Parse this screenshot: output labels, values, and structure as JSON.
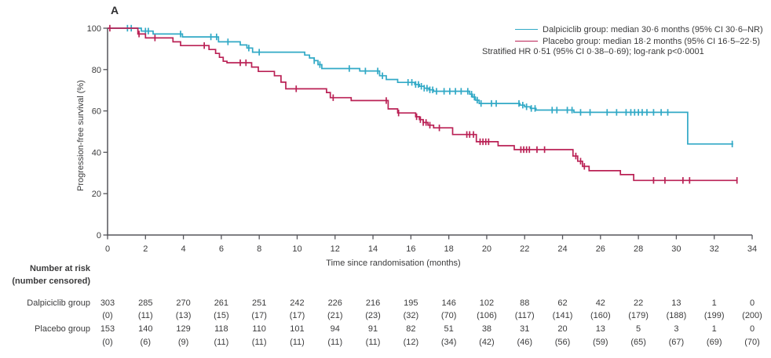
{
  "panel_label": "A",
  "colors": {
    "dalpiciclib": "#31a9c6",
    "placebo": "#ba2155",
    "axis": "#55555a",
    "text": "#3b3b3c"
  },
  "legend": {
    "entries": [
      {
        "label": "Dalpiciclib group: median 30·6 months (95% CI 30·6–NR)",
        "color": "#31a9c6"
      },
      {
        "label": "Placebo group: median 18·2 months (95% CI 16·5–22·5)",
        "color": "#ba2155"
      }
    ],
    "note": "Stratified HR 0·51 (95% CI 0·38–0·69); log-rank p<0·0001"
  },
  "chart_data": {
    "type": "line",
    "subtype": "kaplan-meier-step",
    "xlabel": "Time since randomisation (months)",
    "ylabel": "Progression-free survival (%)",
    "xlim": [
      0,
      34
    ],
    "ylim": [
      0,
      100
    ],
    "x_ticks": [
      0,
      2,
      4,
      6,
      8,
      10,
      12,
      14,
      16,
      18,
      20,
      22,
      24,
      26,
      28,
      30,
      32,
      34
    ],
    "y_ticks": [
      0,
      20,
      40,
      60,
      80,
      100
    ],
    "grid": false,
    "legend_position": "top-right",
    "series": [
      {
        "name": "Dalpiciclib group",
        "color": "#31a9c6",
        "median_months": "30·6",
        "ci": "30·6–NR",
        "steps": [
          [
            0,
            100
          ],
          [
            1.78,
            98.6
          ],
          [
            2.4,
            97.2
          ],
          [
            3.95,
            95.8
          ],
          [
            5.85,
            93.4
          ],
          [
            7.0,
            91.9
          ],
          [
            7.35,
            90.4
          ],
          [
            7.65,
            88.4
          ],
          [
            10.4,
            87.0
          ],
          [
            10.65,
            85.6
          ],
          [
            10.9,
            84.3
          ],
          [
            11.1,
            82.4
          ],
          [
            11.3,
            80.5
          ],
          [
            13.3,
            79.3
          ],
          [
            14.35,
            77.0
          ],
          [
            14.7,
            75.2
          ],
          [
            15.3,
            73.8
          ],
          [
            16.2,
            72.8
          ],
          [
            16.45,
            71.9
          ],
          [
            16.7,
            71.0
          ],
          [
            16.95,
            70.2
          ],
          [
            17.2,
            69.5
          ],
          [
            19.1,
            68.1
          ],
          [
            19.25,
            66.7
          ],
          [
            19.4,
            65.2
          ],
          [
            19.6,
            63.6
          ],
          [
            21.75,
            62.8
          ],
          [
            22.0,
            62.0
          ],
          [
            22.3,
            61.2
          ],
          [
            22.6,
            60.4
          ],
          [
            24.6,
            59.3
          ],
          [
            30.6,
            44.0
          ]
        ],
        "end_time": 33.0,
        "censor_times": [
          1.05,
          1.25,
          2.0,
          2.15,
          3.85,
          5.45,
          5.75,
          6.35,
          7.45,
          8.0,
          10.9,
          11.2,
          12.75,
          13.6,
          14.25,
          14.5,
          15.85,
          16.05,
          16.25,
          16.4,
          16.55,
          16.7,
          16.85,
          17.0,
          17.15,
          17.35,
          17.75,
          18.05,
          18.35,
          18.65,
          19.0,
          19.2,
          19.35,
          19.5,
          19.7,
          20.25,
          20.5,
          21.7,
          21.9,
          22.1,
          22.35,
          22.55,
          23.45,
          23.7,
          24.25,
          24.5,
          24.95,
          25.45,
          26.35,
          26.85,
          27.35,
          27.6,
          27.8,
          28.0,
          28.2,
          28.45,
          28.8,
          29.2,
          29.55,
          32.95
        ]
      },
      {
        "name": "Placebo group",
        "color": "#ba2155",
        "median_months": "18·2",
        "ci": "16·5–22·5",
        "steps": [
          [
            0,
            100
          ],
          [
            1.6,
            97.2
          ],
          [
            2.0,
            95.3
          ],
          [
            3.45,
            93.4
          ],
          [
            3.85,
            91.6
          ],
          [
            5.35,
            89.7
          ],
          [
            5.7,
            87.8
          ],
          [
            5.9,
            85.9
          ],
          [
            6.1,
            84.0
          ],
          [
            6.3,
            83.3
          ],
          [
            7.6,
            81.2
          ],
          [
            7.95,
            79.1
          ],
          [
            8.8,
            77.0
          ],
          [
            9.15,
            73.9
          ],
          [
            9.4,
            70.7
          ],
          [
            11.55,
            68.9
          ],
          [
            11.75,
            66.4
          ],
          [
            12.85,
            65.0
          ],
          [
            14.8,
            61.0
          ],
          [
            15.3,
            59.0
          ],
          [
            16.25,
            57.2
          ],
          [
            16.45,
            55.8
          ],
          [
            16.65,
            54.4
          ],
          [
            16.9,
            53.1
          ],
          [
            17.2,
            51.8
          ],
          [
            18.2,
            48.6
          ],
          [
            19.45,
            45.1
          ],
          [
            20.6,
            43.2
          ],
          [
            21.45,
            41.3
          ],
          [
            24.55,
            38.2
          ],
          [
            24.8,
            35.7
          ],
          [
            25.05,
            33.2
          ],
          [
            25.4,
            31.1
          ],
          [
            27.05,
            29.2
          ],
          [
            27.75,
            26.4
          ]
        ],
        "end_time": 33.2,
        "censor_times": [
          0.12,
          1.66,
          2.5,
          5.1,
          7.0,
          7.3,
          9.95,
          11.9,
          14.7,
          15.35,
          16.3,
          16.5,
          16.65,
          16.8,
          17.0,
          17.5,
          18.95,
          19.1,
          19.3,
          19.65,
          19.8,
          19.95,
          20.1,
          21.8,
          21.95,
          22.1,
          22.25,
          22.65,
          23.05,
          24.7,
          24.95,
          25.15,
          28.8,
          29.4,
          30.35,
          30.7,
          33.2
        ]
      }
    ]
  },
  "risk_table": {
    "header_line1": "Number at risk",
    "header_line2": "(number censored)",
    "time_points": [
      0,
      2,
      4,
      6,
      8,
      10,
      12,
      14,
      16,
      18,
      20,
      22,
      24,
      26,
      28,
      30,
      32,
      34
    ],
    "rows": [
      {
        "label": "Dalpiciclib group",
        "at_risk": [
          303,
          285,
          270,
          261,
          251,
          242,
          226,
          216,
          195,
          146,
          102,
          88,
          62,
          42,
          22,
          13,
          1,
          0
        ],
        "censored": [
          0,
          11,
          13,
          15,
          17,
          17,
          21,
          23,
          32,
          70,
          106,
          117,
          141,
          160,
          179,
          188,
          199,
          200
        ]
      },
      {
        "label": "Placebo group",
        "at_risk": [
          153,
          140,
          129,
          118,
          110,
          101,
          94,
          91,
          82,
          51,
          38,
          31,
          20,
          13,
          5,
          3,
          1,
          0
        ],
        "censored": [
          0,
          6,
          9,
          11,
          11,
          11,
          11,
          11,
          12,
          34,
          42,
          46,
          56,
          59,
          65,
          67,
          69,
          70
        ]
      }
    ]
  }
}
